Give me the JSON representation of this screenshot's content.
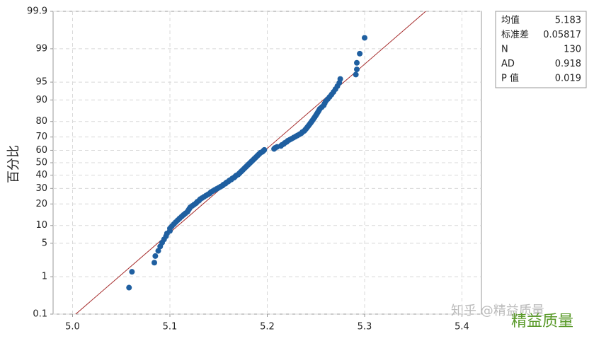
{
  "chart_data": {
    "type": "probability",
    "y_label": "百分比",
    "xlim": [
      4.98,
      5.42
    ],
    "xticks": [
      {
        "value": 5,
        "label": "5.0"
      },
      5.1,
      5.2,
      5.3,
      5.4
    ],
    "ylim": [
      0.1,
      99.9
    ],
    "yticks": [
      0.1,
      1,
      5,
      10,
      20,
      30,
      40,
      50,
      60,
      70,
      80,
      90,
      95,
      99,
      99.9
    ],
    "grid": true,
    "point_color": "#1f5fa0",
    "line_color": "#a52a2a",
    "x": [
      5.058,
      5.061,
      5.084,
      5.085,
      5.088,
      5.09,
      5.092,
      5.094,
      5.096,
      5.097,
      5.1,
      5.1,
      5.102,
      5.104,
      5.106,
      5.108,
      5.11,
      5.112,
      5.114,
      5.116,
      5.118,
      5.119,
      5.12,
      5.121,
      5.123,
      5.125,
      5.127,
      5.128,
      5.13,
      5.131,
      5.133,
      5.135,
      5.137,
      5.139,
      5.141,
      5.142,
      5.144,
      5.146,
      5.148,
      5.15,
      5.152,
      5.154,
      5.155,
      5.157,
      5.158,
      5.16,
      5.161,
      5.163,
      5.164,
      5.166,
      5.167,
      5.168,
      5.17,
      5.171,
      5.172,
      5.173,
      5.174,
      5.175,
      5.176,
      5.177,
      5.178,
      5.179,
      5.18,
      5.181,
      5.182,
      5.183,
      5.184,
      5.185,
      5.186,
      5.187,
      5.188,
      5.189,
      5.19,
      5.191,
      5.192,
      5.193,
      5.195,
      5.196,
      5.197,
      5.207,
      5.208,
      5.21,
      5.214,
      5.215,
      5.217,
      5.218,
      5.22,
      5.221,
      5.223,
      5.225,
      5.227,
      5.229,
      5.231,
      5.233,
      5.235,
      5.236,
      5.238,
      5.239,
      5.24,
      5.241,
      5.242,
      5.243,
      5.244,
      5.245,
      5.246,
      5.247,
      5.248,
      5.249,
      5.25,
      5.251,
      5.252,
      5.253,
      5.254,
      5.256,
      5.258,
      5.259,
      5.26,
      5.262,
      5.264,
      5.266,
      5.268,
      5.27,
      5.272,
      5.274,
      5.275,
      5.291,
      5.292,
      5.292,
      5.295,
      5.3
    ],
    "values": [
      0.54,
      1.3,
      2.07,
      2.84,
      3.6,
      4.37,
      5.14,
      5.9,
      6.67,
      7.44,
      8.2,
      8.97,
      9.74,
      10.51,
      11.27,
      12.04,
      12.81,
      13.57,
      14.34,
      15.11,
      15.87,
      16.64,
      17.41,
      18.17,
      18.94,
      19.71,
      20.48,
      21.24,
      22.01,
      22.78,
      23.54,
      24.31,
      25.08,
      25.84,
      26.61,
      27.38,
      28.14,
      28.91,
      29.68,
      30.44,
      31.21,
      31.98,
      32.75,
      33.51,
      34.28,
      35.05,
      35.81,
      36.58,
      37.35,
      38.11,
      38.88,
      39.65,
      40.41,
      41.18,
      41.95,
      42.71,
      43.48,
      44.25,
      45.02,
      45.78,
      46.55,
      47.32,
      48.08,
      48.85,
      49.62,
      50.38,
      51.15,
      51.92,
      52.68,
      53.45,
      54.22,
      54.98,
      55.75,
      56.52,
      57.29,
      58.05,
      58.82,
      59.59,
      60.35,
      61.12,
      61.89,
      62.65,
      63.42,
      64.19,
      64.95,
      65.72,
      66.49,
      67.25,
      68.02,
      68.79,
      69.56,
      70.32,
      71.09,
      71.86,
      72.62,
      73.39,
      74.16,
      74.92,
      75.69,
      76.46,
      77.22,
      77.99,
      78.76,
      79.52,
      80.29,
      81.06,
      81.83,
      82.59,
      83.36,
      84.13,
      84.89,
      85.66,
      86.43,
      87.19,
      87.96,
      88.73,
      89.49,
      90.26,
      91.03,
      91.79,
      92.56,
      93.33,
      94.1,
      94.86,
      95.63,
      96.4,
      97.16,
      97.93,
      98.7,
      99.46
    ],
    "stats": [
      {
        "label": "均值",
        "value": 5.183
      },
      {
        "label": "标准差",
        "value": 0.05817
      },
      {
        "label": "N",
        "value": 130
      },
      {
        "label": "AD",
        "value": 0.918
      },
      {
        "label": "P 值",
        "value": 0.019
      }
    ],
    "watermark": "知乎 @精益质量",
    "watermark_2": "精益质量"
  }
}
